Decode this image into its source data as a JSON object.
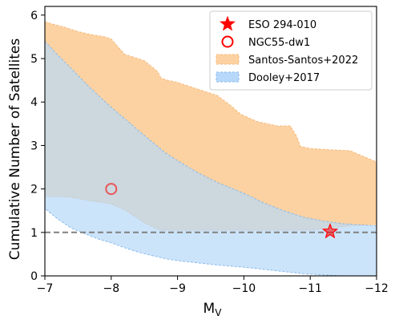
{
  "chart_data": {
    "type": "area",
    "xlabel": "M",
    "xlabel_sub": "V",
    "ylabel": "Cumulative Number of Satellites",
    "xlim": [
      -7,
      -12
    ],
    "ylim": [
      0,
      6.2
    ],
    "x_ticks": [
      -7,
      -8,
      -9,
      -10,
      -11,
      -12
    ],
    "x_tick_labels": [
      "−7",
      "−8",
      "−9",
      "−10",
      "−11",
      "−12"
    ],
    "y_ticks": [
      0,
      1,
      2,
      3,
      4,
      5,
      6
    ],
    "y_tick_labels": [
      "0",
      "1",
      "2",
      "3",
      "4",
      "5",
      "6"
    ],
    "legend_position": "top-right",
    "reference_line": {
      "y": 1,
      "style": "dashed",
      "color": "#808080"
    },
    "series": [
      {
        "name": "Santos-Santos+2022",
        "kind": "band",
        "color": "#fdd2a2",
        "edge": "#f5b878",
        "x": [
          -7,
          -7.1,
          -7.3,
          -7.5,
          -7.7,
          -7.9,
          -8.0,
          -8.2,
          -8.5,
          -8.7,
          -8.75,
          -8.85,
          -9.0,
          -9.3,
          -9.6,
          -9.8,
          -9.95,
          -10.2,
          -10.5,
          -10.7,
          -10.8,
          -10.85,
          -11.0,
          -11.3,
          -11.6,
          -11.8,
          -12.0
        ],
        "upper": [
          5.85,
          5.8,
          5.72,
          5.62,
          5.55,
          5.5,
          5.45,
          5.1,
          4.95,
          4.7,
          4.55,
          4.5,
          4.45,
          4.3,
          4.15,
          3.92,
          3.72,
          3.55,
          3.45,
          3.45,
          3.2,
          2.98,
          2.93,
          2.9,
          2.88,
          2.75,
          2.62
        ],
        "lower": [
          1.82,
          1.82,
          1.82,
          1.78,
          1.72,
          1.68,
          1.65,
          1.52,
          1.22,
          1.07,
          1.05,
          1.05,
          1.05,
          1.05,
          1.05,
          1.05,
          1.05,
          1.05,
          1.05,
          1.05,
          1.05,
          1.05,
          1.05,
          1.1,
          1.15,
          1.18,
          1.18
        ]
      },
      {
        "name": "Dooley+2017",
        "kind": "band",
        "color": "#b7d8f8",
        "edge": "#88bbee",
        "x": [
          -7,
          -7.2,
          -7.4,
          -7.6,
          -7.8,
          -8.0,
          -8.2,
          -8.4,
          -8.6,
          -8.7,
          -8.8,
          -9.0,
          -9.3,
          -9.6,
          -10.0,
          -10.3,
          -10.6,
          -10.9,
          -11.2,
          -11.5,
          -11.8,
          -12.0
        ],
        "upper": [
          5.4,
          5.07,
          4.77,
          4.45,
          4.16,
          3.88,
          3.62,
          3.36,
          3.1,
          2.98,
          2.85,
          2.65,
          2.38,
          2.15,
          1.9,
          1.68,
          1.5,
          1.35,
          1.26,
          1.2,
          1.17,
          1.15
        ],
        "lower": [
          1.55,
          1.3,
          1.1,
          0.97,
          0.85,
          0.76,
          0.65,
          0.55,
          0.47,
          0.44,
          0.4,
          0.35,
          0.3,
          0.25,
          0.2,
          0.15,
          0.1,
          0.05,
          0.02,
          0,
          0,
          0
        ]
      }
    ],
    "points": [
      {
        "name": "ESO 294-010",
        "marker": "star",
        "x": -11.3,
        "y": 1.02,
        "color": "#ff0000"
      },
      {
        "name": "NGC55-dw1",
        "marker": "circle-open",
        "x": -8.0,
        "y": 2.0,
        "color": "#ff0000"
      }
    ]
  }
}
